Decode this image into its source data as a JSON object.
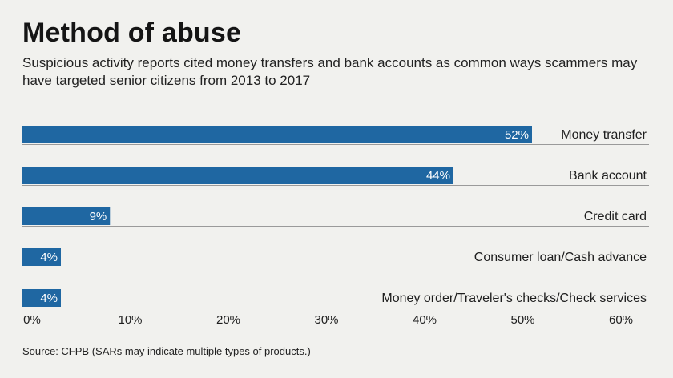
{
  "header": {
    "title": "Method of abuse",
    "subtitle": "Suspicious activity reports cited money transfers and bank accounts as common ways scammers may have targeted senior citizens from 2013 to 2017"
  },
  "footer": {
    "source": "Source: CFPB (SARs may indicate multiple types of products.)"
  },
  "colors": {
    "bar": "#1f67a2",
    "background": "#f1f1ee"
  },
  "chart_data": {
    "type": "bar",
    "orientation": "horizontal",
    "title": "Method of abuse",
    "categories": [
      "Money transfer",
      "Bank account",
      "Credit card",
      "Consumer loan/Cash advance",
      "Money order/Traveler's checks/Check services"
    ],
    "values": [
      52,
      44,
      9,
      4,
      4
    ],
    "value_labels": [
      "52%",
      "44%",
      "9%",
      "4%",
      "4%"
    ],
    "xlim": [
      0,
      60
    ],
    "xticks": [
      "0%",
      "10%",
      "20%",
      "30%",
      "40%",
      "50%",
      "60%"
    ],
    "grid": false,
    "legend": "none"
  }
}
